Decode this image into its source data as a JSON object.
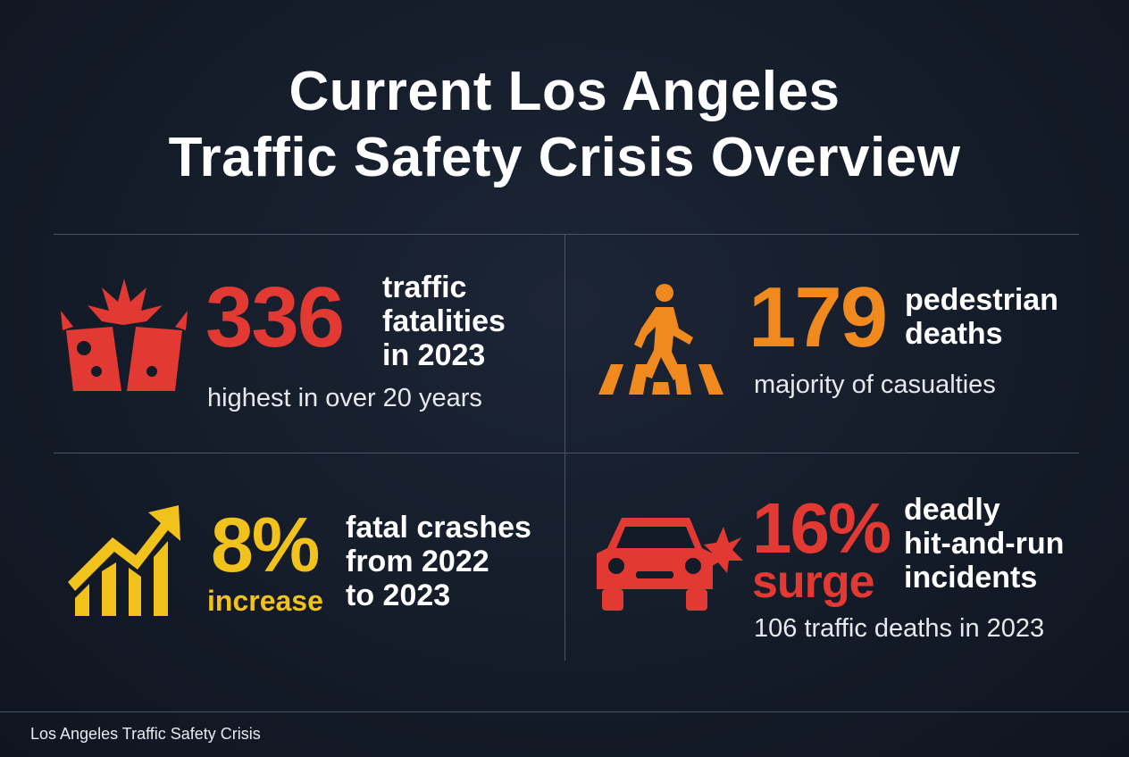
{
  "title": {
    "line1": "Current Los Angeles",
    "line2": "Traffic Safety Crisis Overview"
  },
  "stats": {
    "fatalities": {
      "icon": "car-crash-icon",
      "value": "336",
      "label_lines": [
        "traffic",
        "fatalities",
        "in 2023"
      ],
      "subtext": "highest in over 20 years",
      "color": "#e23a32"
    },
    "pedestrian": {
      "icon": "pedestrian-crosswalk-icon",
      "value": "179",
      "label_lines": [
        "pedestrian",
        "deaths"
      ],
      "subtext": "majority of casualties",
      "color": "#f08a1e"
    },
    "increase": {
      "icon": "trending-up-icon",
      "value": "8%",
      "qualifier": "increase",
      "label_lines": [
        "fatal crashes",
        "from 2022",
        "to 2023"
      ],
      "color": "#f2c21c"
    },
    "hit_and_run": {
      "icon": "car-impact-icon",
      "value": "16%",
      "qualifier": "surge",
      "label_lines": [
        "deadly",
        "hit-and-run",
        "incidents"
      ],
      "subtext": "106 traffic deaths in 2023",
      "color": "#e23a32"
    }
  },
  "footer": "Los Angeles Traffic Safety Crisis"
}
